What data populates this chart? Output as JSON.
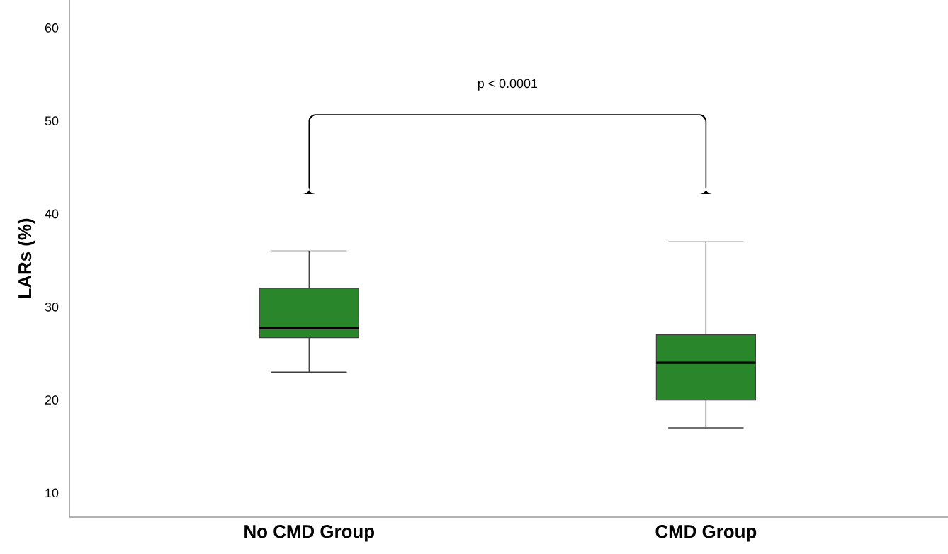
{
  "chart_data": {
    "type": "box",
    "ylabel": "LARs (%)",
    "categories": [
      "No CMD Group",
      "CMD Group"
    ],
    "color": "#2a862a",
    "boxes": [
      {
        "low": 23,
        "q1": 26.7,
        "median": 27.7,
        "q3": 32,
        "high": 36
      },
      {
        "low": 17,
        "q1": 20,
        "median": 24,
        "q3": 27,
        "high": 37
      }
    ],
    "ylim": [
      7.4,
      63
    ],
    "yticks": [
      10,
      20,
      30,
      40,
      50,
      60
    ],
    "annotations": [
      "p < 0.0001"
    ]
  }
}
